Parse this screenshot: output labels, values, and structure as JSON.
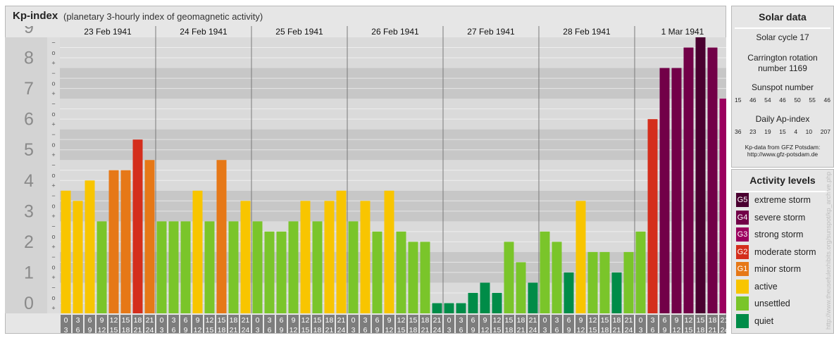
{
  "header": {
    "title": "Kp-index",
    "subtitle": "(planetary 3-hourly index of geomagnetic activity)"
  },
  "chart_data": {
    "type": "bar",
    "title": "Kp-index",
    "subtitle": "(planetary 3-hourly index of geomagnetic activity)",
    "ylim": [
      0,
      9
    ],
    "y_ticks": [
      "0",
      "1",
      "2",
      "3",
      "4",
      "5",
      "6",
      "7",
      "8",
      "9"
    ],
    "subdivision_marks": [
      "+",
      "o",
      "−"
    ],
    "days": [
      "23 Feb 1941",
      "24 Feb 1941",
      "25 Feb 1941",
      "26 Feb 1941",
      "27 Feb 1941",
      "28 Feb 1941",
      "1 Mar 1941"
    ],
    "intervals": [
      [
        "0",
        "3"
      ],
      [
        "3",
        "6"
      ],
      [
        "6",
        "9"
      ],
      [
        "9",
        "12"
      ],
      [
        "12",
        "15"
      ],
      [
        "15",
        "18"
      ],
      [
        "18",
        "21"
      ],
      [
        "21",
        "24"
      ]
    ],
    "values": [
      [
        4.0,
        3.667,
        4.333,
        3.0,
        4.667,
        4.667,
        5.667,
        5.0
      ],
      [
        3.0,
        3.0,
        3.0,
        4.0,
        3.0,
        5.0,
        3.0,
        3.667
      ],
      [
        3.0,
        2.667,
        2.667,
        3.0,
        3.667,
        3.0,
        3.667,
        4.0
      ],
      [
        3.0,
        3.667,
        2.667,
        4.0,
        2.667,
        2.333,
        2.333,
        0.333
      ],
      [
        0.333,
        0.333,
        0.667,
        1.0,
        0.667,
        2.333,
        1.667,
        1.0
      ],
      [
        2.667,
        2.333,
        1.333,
        3.667,
        2.0,
        2.0,
        1.333,
        2.0
      ],
      [
        2.667,
        6.333,
        8.0,
        8.0,
        8.667,
        9.0,
        8.667,
        7.0
      ]
    ],
    "colors": {
      "G5": "#4a0030",
      "G4": "#720048",
      "G3": "#9b005e",
      "G2": "#d42e1c",
      "G1": "#e67817",
      "active": "#f8c500",
      "unsettled": "#7ac52a",
      "quiet": "#008c48"
    }
  },
  "solar": {
    "title": "Solar data",
    "cycle": "Solar cycle 17",
    "carrington_line1": "Carrington rotation",
    "carrington_line2": "number 1169",
    "sunspot_label": "Sunspot number",
    "sunspot_values": [
      "15",
      "46",
      "54",
      "46",
      "50",
      "55",
      "46"
    ],
    "ap_label": "Daily Ap-index",
    "ap_values": [
      "36",
      "23",
      "19",
      "15",
      "4",
      "10",
      "207"
    ],
    "credit_line1": "Kp-data from GFZ Potsdam:",
    "credit_line2": "http://www.gfz-potsdam.de"
  },
  "levels": {
    "title": "Activity levels",
    "items": [
      {
        "code": "G5",
        "label": "extreme storm",
        "color": "#4a0030"
      },
      {
        "code": "G4",
        "label": "severe storm",
        "color": "#720048"
      },
      {
        "code": "G3",
        "label": "strong storm",
        "color": "#9b005e"
      },
      {
        "code": "G2",
        "label": "moderate storm",
        "color": "#d42e1c"
      },
      {
        "code": "G1",
        "label": "minor storm",
        "color": "#e67817"
      },
      {
        "code": "",
        "label": "active",
        "color": "#f8c500"
      },
      {
        "code": "",
        "label": "unsettled",
        "color": "#7ac52a"
      },
      {
        "code": "",
        "label": "quiet",
        "color": "#008c48"
      }
    ]
  },
  "watermark": "http://www.theusefulexhibits.org/sunspot/kp_archive.php"
}
